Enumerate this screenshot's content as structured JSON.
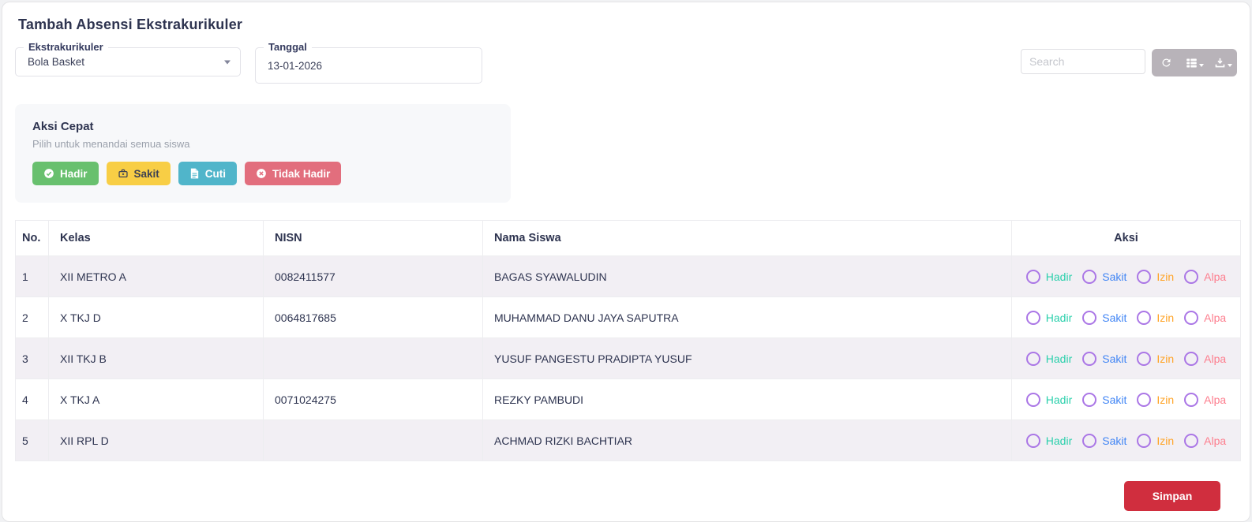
{
  "page": {
    "title": "Tambah Absensi Ekstrakurikuler"
  },
  "filters": {
    "ekstrakurikuler": {
      "label": "Ekstrakurikuler",
      "value": "Bola Basket"
    },
    "tanggal": {
      "label": "Tanggal",
      "value": "13-01-2026"
    }
  },
  "toolbar": {
    "search_placeholder": "Search",
    "icons": [
      "refresh",
      "columns-list",
      "export-download"
    ],
    "button_color": "#b8b3b9"
  },
  "quick_actions": {
    "title": "Aksi Cepat",
    "subtitle": "Pilih untuk menandai semua siswa",
    "buttons": [
      {
        "label": "Hadir",
        "icon": "check-circle",
        "color": "#68c06e"
      },
      {
        "label": "Sakit",
        "icon": "medical-briefcase",
        "color": "#f8ce45"
      },
      {
        "label": "Cuti",
        "icon": "file-document",
        "color": "#50b5ca"
      },
      {
        "label": "Tidak Hadir",
        "icon": "x-circle",
        "color": "#e26e7d"
      }
    ]
  },
  "table": {
    "headers": [
      "No.",
      "Kelas",
      "NISN",
      "Nama Siswa",
      "Aksi"
    ],
    "rows": [
      {
        "no": "1",
        "kelas": "XII METRO A",
        "nisn": "0082411577",
        "nama": "BAGAS SYAWALUDIN"
      },
      {
        "no": "2",
        "kelas": "X TKJ D",
        "nisn": "0064817685",
        "nama": "MUHAMMAD DANU JAYA SAPUTRA"
      },
      {
        "no": "3",
        "kelas": "XII TKJ B",
        "nisn": "",
        "nama": "YUSUF PANGESTU PRADIPTA YUSUF"
      },
      {
        "no": "4",
        "kelas": "X TKJ A",
        "nisn": "0071024275",
        "nama": "REZKY PAMBUDI"
      },
      {
        "no": "5",
        "kelas": "XII RPL D",
        "nisn": "",
        "nama": "ACHMAD RIZKI BACHTIAR"
      }
    ],
    "radio_options": [
      {
        "label": "Hadir",
        "color": "#2bd0ac"
      },
      {
        "label": "Sakit",
        "color": "#4286f5"
      },
      {
        "label": "Izin",
        "color": "#ffa428"
      },
      {
        "label": "Alpa",
        "color": "#fd7e8e"
      }
    ],
    "radio_border_color": "#ab77e6",
    "stripe_color": "#f2eff4"
  },
  "footer": {
    "save_label": "Simpan",
    "save_color": "#d02e3e"
  }
}
